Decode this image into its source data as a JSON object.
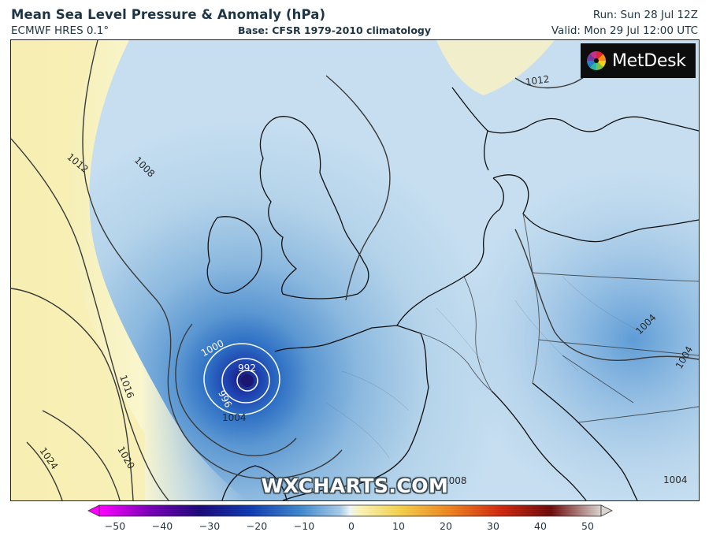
{
  "header": {
    "title": "Mean Sea Level Pressure & Anomaly (hPa)",
    "model": "ECMWF HRES 0.1°",
    "base": "Base: CFSR 1979-2010 climatology",
    "run": "Run: Sun 28 Jul 12Z",
    "valid": "Valid: Mon 29 Jul 12:00 UTC"
  },
  "branding": {
    "logo": "MetDesk",
    "watermark": "WXCHARTS.COM"
  },
  "contours": {
    "isobar_labels": [
      "992",
      "996",
      "1000",
      "1004",
      "1008",
      "1012",
      "1016",
      "1020",
      "1024",
      "1012",
      "1004",
      "1004",
      "1004",
      "1008"
    ]
  },
  "colorbar": {
    "ticks": [
      "−50",
      "−40",
      "−30",
      "−20",
      "−10",
      "0",
      "10",
      "20",
      "30",
      "40",
      "50"
    ],
    "colors": [
      "#ff00ff",
      "#7a00b8",
      "#1c0a7a",
      "#0f3bb0",
      "#3f86cc",
      "#b7d5ea",
      "#f6f0b4",
      "#f2b327",
      "#e24812",
      "#9c0f0f",
      "#d9d4d0"
    ]
  },
  "colors": {
    "negative_anomaly": "#3f86cc",
    "positive_anomaly": "#f8f2b4",
    "isobar": "#3a3a3a",
    "low_center": "#1b1670"
  }
}
